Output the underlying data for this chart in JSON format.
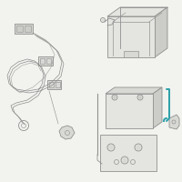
{
  "bg_color": "#f2f2ee",
  "line_color": "#909090",
  "dark_line": "#707070",
  "teal_color": "#2b9faa",
  "fill_light": "#e4e4e0",
  "fill_mid": "#d8d8d4",
  "fill_dark": "#ccccc8",
  "figsize": [
    2.0,
    2.0
  ],
  "dpi": 100
}
